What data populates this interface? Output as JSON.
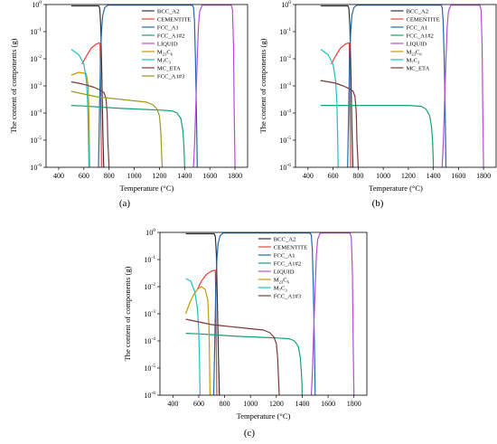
{
  "figure": {
    "panel_labels": [
      "(a)",
      "(b)",
      "(c)"
    ]
  },
  "chart_data": [
    {
      "type": "line",
      "panel_label": "(a)",
      "xlabel": "Temperature (°C)",
      "ylabel": "The content of components (g)",
      "xlim": [
        300,
        1900
      ],
      "ylim_log10": [
        -6,
        0
      ],
      "y_scale": "log",
      "xticks": [
        400,
        600,
        800,
        1000,
        1200,
        1400,
        1600,
        1800
      ],
      "yticks": [
        {
          "base": "10",
          "exp": "0"
        },
        {
          "base": "10",
          "exp": "-1"
        },
        {
          "base": "10",
          "exp": "-2"
        },
        {
          "base": "10",
          "exp": "-3"
        },
        {
          "base": "10",
          "exp": "-4"
        },
        {
          "base": "10",
          "exp": "-5"
        },
        {
          "base": "10",
          "exp": "-6"
        }
      ],
      "grid": false,
      "legend_position": "top-right",
      "series": [
        {
          "name": "BCC_A2",
          "label": {
            "main": "BCC_A2"
          },
          "color": "#333333",
          "x": [
            500,
            600,
            700,
            718,
            726,
            734,
            742,
            750,
            758
          ],
          "y_log10": [
            -0.05,
            -0.05,
            -0.05,
            -0.05,
            -0.15,
            -0.8,
            -2.5,
            -4.5,
            -6
          ]
        },
        {
          "name": "CEMENTITE",
          "label": {
            "main": "CEMENTITE"
          },
          "color": "#e8423f",
          "x": [
            585,
            620,
            660,
            700,
            722,
            728,
            732,
            736,
            740
          ],
          "y_log10": [
            -2.2,
            -1.9,
            -1.6,
            -1.45,
            -1.42,
            -1.42,
            -2.5,
            -4.5,
            -6
          ]
        },
        {
          "name": "FCC_A1",
          "label": {
            "main": "FCC_A1"
          },
          "color": "#2166ac",
          "x": [
            716,
            724,
            732,
            740,
            750,
            765,
            790,
            1000,
            1400,
            1460,
            1470,
            1478,
            1486,
            1494,
            1500
          ],
          "y_log10": [
            -6,
            -4,
            -2,
            -1,
            -0.4,
            -0.12,
            -0.02,
            -0.02,
            -0.02,
            -0.02,
            -0.1,
            -0.6,
            -2,
            -4,
            -6
          ]
        },
        {
          "name": "FCC_A1#2",
          "label": {
            "main": "FCC_A1#2"
          },
          "color": "#1a9e77",
          "x": [
            500,
            600,
            700,
            800,
            900,
            1000,
            1100,
            1200,
            1300,
            1340,
            1370,
            1385,
            1393,
            1398,
            1400
          ],
          "y_log10": [
            -3.72,
            -3.74,
            -3.77,
            -3.8,
            -3.83,
            -3.85,
            -3.87,
            -3.89,
            -3.92,
            -4.0,
            -4.2,
            -4.6,
            -5.1,
            -5.6,
            -6
          ]
        },
        {
          "name": "LIQUID",
          "label": {
            "main": "LIQUID"
          },
          "color": "#b24fd4",
          "x": [
            1470,
            1480,
            1490,
            1500,
            1510,
            1520,
            1540,
            1700,
            1770,
            1780,
            1788,
            1794,
            1800
          ],
          "y_log10": [
            -6,
            -5,
            -3.5,
            -2,
            -0.8,
            -0.25,
            -0.02,
            -0.02,
            -0.02,
            -0.2,
            -1.5,
            -4,
            -6
          ]
        },
        {
          "name": "M23C6",
          "label": {
            "main": "M",
            "sub1": "23",
            "mid": "C",
            "sub2": "6"
          },
          "color": "#c79a00",
          "x": [
            500,
            560,
            620,
            634,
            642,
            646
          ],
          "y_log10": [
            -2.6,
            -2.5,
            -2.55,
            -3.0,
            -4.5,
            -6
          ]
        },
        {
          "name": "M7C3",
          "label": {
            "main": "M",
            "sub1": "7",
            "mid": "C",
            "sub2": "3"
          },
          "color": "#17c3c6",
          "x": [
            500,
            560,
            600,
            620,
            630,
            636,
            640
          ],
          "y_log10": [
            -1.65,
            -1.85,
            -2.2,
            -2.8,
            -3.6,
            -4.8,
            -6
          ]
        },
        {
          "name": "MC_ETA",
          "label": {
            "main": "MC_ETA"
          },
          "color": "#7b3a3a",
          "x": [
            500,
            560,
            620,
            680,
            730,
            760,
            775,
            785,
            790,
            800
          ],
          "y_log10": [
            -2.85,
            -2.9,
            -2.97,
            -3.05,
            -3.15,
            -3.25,
            -3.45,
            -4,
            -5,
            -6
          ]
        },
        {
          "name": "FCC_A1#3",
          "label": {
            "main": "FCC_A1#3"
          },
          "color": "#9a9a1a",
          "x": [
            500,
            600,
            700,
            800,
            900,
            1000,
            1100,
            1150,
            1180,
            1200,
            1210,
            1218,
            1222
          ],
          "y_log10": [
            -3.2,
            -3.3,
            -3.4,
            -3.45,
            -3.5,
            -3.55,
            -3.6,
            -3.7,
            -3.85,
            -4.1,
            -4.6,
            -5.5,
            -6
          ]
        }
      ]
    },
    {
      "type": "line",
      "panel_label": "(b)",
      "xlabel": "Temperature (°C)",
      "ylabel": "The content of components (g)",
      "xlim": [
        300,
        1900
      ],
      "ylim_log10": [
        -6,
        0
      ],
      "y_scale": "log",
      "xticks": [
        400,
        600,
        800,
        1000,
        1200,
        1400,
        1600,
        1800
      ],
      "yticks": [
        {
          "base": "10",
          "exp": "0"
        },
        {
          "base": "10",
          "exp": "-1"
        },
        {
          "base": "10",
          "exp": "-2"
        },
        {
          "base": "10",
          "exp": "-3"
        },
        {
          "base": "10",
          "exp": "-4"
        },
        {
          "base": "10",
          "exp": "-5"
        },
        {
          "base": "10",
          "exp": "-6"
        }
      ],
      "grid": false,
      "legend_position": "top-right",
      "series": [
        {
          "name": "BCC_A2",
          "label": {
            "main": "BCC_A2"
          },
          "color": "#333333",
          "x": [
            500,
            600,
            700,
            718,
            726,
            734,
            742,
            750,
            758
          ],
          "y_log10": [
            -0.05,
            -0.05,
            -0.05,
            -0.05,
            -0.15,
            -0.8,
            -2.5,
            -4.5,
            -6
          ]
        },
        {
          "name": "CEMENTITE",
          "label": {
            "main": "CEMENTITE"
          },
          "color": "#e8423f",
          "x": [
            585,
            620,
            660,
            700,
            722,
            728,
            732,
            736,
            740
          ],
          "y_log10": [
            -2.2,
            -1.9,
            -1.6,
            -1.45,
            -1.42,
            -1.42,
            -2.5,
            -4.5,
            -6
          ]
        },
        {
          "name": "FCC_A1",
          "label": {
            "main": "FCC_A1"
          },
          "color": "#2166ac",
          "x": [
            716,
            724,
            732,
            740,
            750,
            765,
            790,
            1000,
            1400,
            1460,
            1470,
            1478,
            1486,
            1494,
            1500
          ],
          "y_log10": [
            -6,
            -4,
            -2,
            -1,
            -0.4,
            -0.12,
            -0.02,
            -0.02,
            -0.02,
            -0.02,
            -0.1,
            -0.6,
            -2,
            -4,
            -6
          ]
        },
        {
          "name": "FCC_A1#2",
          "label": {
            "main": "FCC_A1#2"
          },
          "color": "#1a9e77",
          "x": [
            500,
            600,
            700,
            800,
            900,
            1000,
            1100,
            1200,
            1300,
            1340,
            1370,
            1385,
            1393,
            1398,
            1400
          ],
          "y_log10": [
            -3.72,
            -3.72,
            -3.72,
            -3.72,
            -3.72,
            -3.72,
            -3.72,
            -3.72,
            -3.75,
            -3.85,
            -4.1,
            -4.5,
            -5.0,
            -5.6,
            -6
          ]
        },
        {
          "name": "LIQUID",
          "label": {
            "main": "LIQUID"
          },
          "color": "#b24fd4",
          "x": [
            1470,
            1480,
            1490,
            1500,
            1510,
            1520,
            1540,
            1700,
            1770,
            1780,
            1788,
            1794,
            1800
          ],
          "y_log10": [
            -6,
            -5,
            -3.5,
            -2,
            -0.8,
            -0.25,
            -0.02,
            -0.02,
            -0.02,
            -0.2,
            -1.5,
            -4,
            -6
          ]
        },
        {
          "name": "M23C6",
          "label": {
            "main": "M",
            "sub1": "23",
            "mid": "C",
            "sub2": "6"
          },
          "color": "#c79a00",
          "x": [],
          "y_log10": []
        },
        {
          "name": "M7C3",
          "label": {
            "main": "M",
            "sub1": "7",
            "mid": "C",
            "sub2": "3"
          },
          "color": "#17c3c6",
          "x": [
            500,
            560,
            600,
            620,
            630,
            636,
            640
          ],
          "y_log10": [
            -1.65,
            -1.85,
            -2.2,
            -2.8,
            -3.6,
            -4.8,
            -6
          ]
        },
        {
          "name": "MC_ETA",
          "label": {
            "main": "MC_ETA"
          },
          "color": "#7b3a3a",
          "x": [
            500,
            560,
            620,
            680,
            730,
            760,
            775,
            785,
            790,
            800
          ],
          "y_log10": [
            -2.8,
            -2.85,
            -2.9,
            -3.0,
            -3.1,
            -3.2,
            -3.4,
            -4,
            -5,
            -6
          ]
        }
      ]
    },
    {
      "type": "line",
      "panel_label": "(c)",
      "xlabel": "Temperature (°C)",
      "ylabel": "The content of components (g)",
      "xlim": [
        300,
        1900
      ],
      "ylim_log10": [
        -6,
        0
      ],
      "y_scale": "log",
      "xticks": [
        400,
        600,
        800,
        1000,
        1200,
        1400,
        1600,
        1800
      ],
      "yticks": [
        {
          "base": "10",
          "exp": "0"
        },
        {
          "base": "10",
          "exp": "-1"
        },
        {
          "base": "10",
          "exp": "-2"
        },
        {
          "base": "10",
          "exp": "-3"
        },
        {
          "base": "10",
          "exp": "-4"
        },
        {
          "base": "10",
          "exp": "-5"
        },
        {
          "base": "10",
          "exp": "-6"
        }
      ],
      "grid": false,
      "legend_position": "top-right",
      "series": [
        {
          "name": "BCC_A2",
          "label": {
            "main": "BCC_A2"
          },
          "color": "#333333",
          "x": [
            500,
            600,
            700,
            720,
            728,
            736,
            744,
            752,
            760
          ],
          "y_log10": [
            -0.05,
            -0.05,
            -0.05,
            -0.05,
            -0.15,
            -0.8,
            -2.5,
            -4.5,
            -6
          ]
        },
        {
          "name": "CEMENTITE",
          "label": {
            "main": "CEMENTITE"
          },
          "color": "#e8423f",
          "x": [
            590,
            620,
            660,
            700,
            722,
            728,
            732,
            736,
            740
          ],
          "y_log10": [
            -2.1,
            -1.8,
            -1.55,
            -1.42,
            -1.4,
            -1.4,
            -2.5,
            -4.5,
            -6
          ]
        },
        {
          "name": "FCC_A1",
          "label": {
            "main": "FCC_A1"
          },
          "color": "#2166ac",
          "x": [
            716,
            724,
            732,
            740,
            750,
            765,
            790,
            1000,
            1400,
            1460,
            1470,
            1478,
            1486,
            1494,
            1500
          ],
          "y_log10": [
            -6,
            -4,
            -2,
            -1,
            -0.4,
            -0.12,
            -0.02,
            -0.02,
            -0.02,
            -0.02,
            -0.1,
            -0.6,
            -2,
            -4,
            -6
          ]
        },
        {
          "name": "FCC_A1#2",
          "label": {
            "main": "FCC_A1#2"
          },
          "color": "#1a9e77",
          "x": [
            500,
            600,
            700,
            800,
            900,
            1000,
            1100,
            1200,
            1300,
            1340,
            1370,
            1385,
            1393,
            1398,
            1400
          ],
          "y_log10": [
            -3.72,
            -3.74,
            -3.77,
            -3.8,
            -3.83,
            -3.85,
            -3.87,
            -3.89,
            -3.92,
            -4.0,
            -4.2,
            -4.6,
            -5.1,
            -5.6,
            -6
          ]
        },
        {
          "name": "LIQUID",
          "label": {
            "main": "LIQUID"
          },
          "color": "#b24fd4",
          "x": [
            1470,
            1480,
            1490,
            1500,
            1510,
            1520,
            1540,
            1700,
            1770,
            1780,
            1788,
            1794,
            1800
          ],
          "y_log10": [
            -6,
            -5,
            -3.5,
            -2,
            -0.8,
            -0.25,
            -0.02,
            -0.02,
            -0.02,
            -0.2,
            -1.5,
            -4,
            -6
          ]
        },
        {
          "name": "M23C6",
          "label": {
            "main": "M",
            "sub1": "23",
            "mid": "C",
            "sub2": "6"
          },
          "color": "#c79a00",
          "x": [
            500,
            530,
            560,
            590,
            620,
            650,
            670,
            680,
            684,
            687
          ],
          "y_log10": [
            -3.0,
            -2.6,
            -2.3,
            -2.1,
            -2.0,
            -2.1,
            -2.5,
            -3.6,
            -5,
            -6
          ]
        },
        {
          "name": "M7C3",
          "label": {
            "main": "M",
            "sub1": "7",
            "mid": "C",
            "sub2": "3"
          },
          "color": "#17c3c6",
          "x": [
            500,
            540,
            570,
            590,
            600,
            606,
            610
          ],
          "y_log10": [
            -1.7,
            -1.8,
            -2.2,
            -2.8,
            -3.6,
            -4.8,
            -6
          ]
        },
        {
          "name": "FCC_A1#3",
          "label": {
            "main": "FCC_A1#3"
          },
          "color": "#7b3a3a",
          "x": [
            500,
            600,
            700,
            800,
            900,
            1000,
            1100,
            1150,
            1180,
            1200,
            1210,
            1218,
            1222
          ],
          "y_log10": [
            -3.2,
            -3.3,
            -3.4,
            -3.45,
            -3.5,
            -3.55,
            -3.6,
            -3.7,
            -3.85,
            -4.1,
            -4.6,
            -5.5,
            -6
          ]
        }
      ]
    }
  ]
}
